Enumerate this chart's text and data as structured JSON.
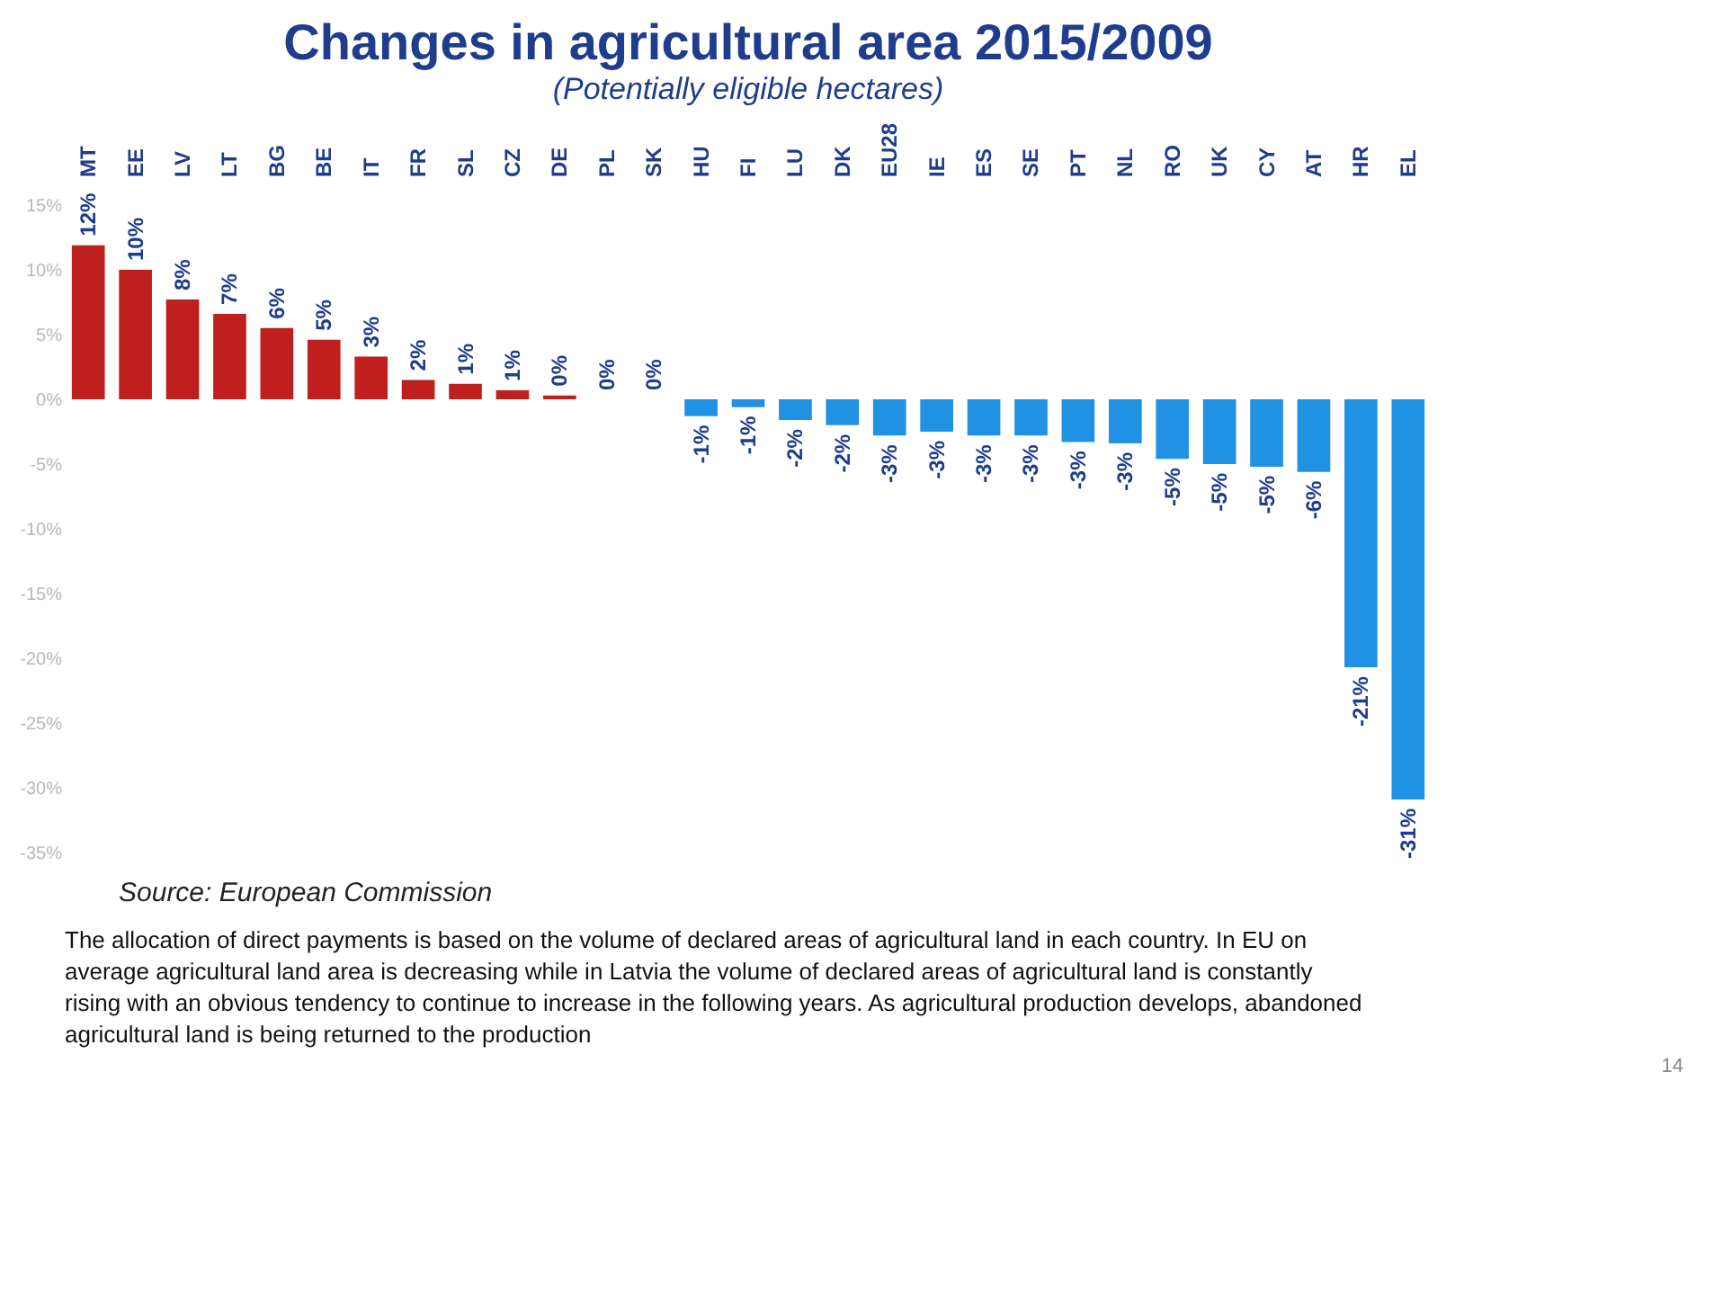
{
  "chart_data": {
    "type": "bar",
    "title": "Changes in agricultural area 2015/2009",
    "subtitle": "(Potentially eligible hectares)",
    "categories": [
      "MT",
      "EE",
      "LV",
      "LT",
      "BG",
      "BE",
      "IT",
      "FR",
      "SL",
      "CZ",
      "DE",
      "PL",
      "SK",
      "HU",
      "FI",
      "LU",
      "DK",
      "EU28",
      "IE",
      "ES",
      "SE",
      "PT",
      "NL",
      "RO",
      "UK",
      "CY",
      "AT",
      "HR",
      "EL"
    ],
    "values": [
      11.9,
      10,
      7.7,
      6.6,
      5.5,
      4.6,
      3.3,
      1.5,
      1.2,
      0.7,
      0.3,
      0,
      0,
      -1.3,
      -0.6,
      -1.6,
      -2,
      -2.8,
      -2.5,
      -2.8,
      -2.8,
      -3.3,
      -3.4,
      -4.6,
      -5,
      -5.2,
      -5.6,
      -20.7,
      -30.9
    ],
    "value_labels": [
      "12%",
      "10%",
      "8%",
      "7%",
      "6%",
      "5%",
      "3%",
      "2%",
      "1%",
      "1%",
      "0%",
      "0%",
      "0%",
      "-1%",
      "-1%",
      "-2%",
      "-2%",
      "-3%",
      "-3%",
      "-3%",
      "-3%",
      "-3%",
      "-3%",
      "-5%",
      "-5%",
      "-5%",
      "-6%",
      "-21%",
      "-31%"
    ],
    "colors": [
      "#c0201d",
      "#c0201d",
      "#c0201d",
      "#c0201d",
      "#c0201d",
      "#c0201d",
      "#c0201d",
      "#c0201d",
      "#c0201d",
      "#c0201d",
      "#c0201d",
      "#c0201d",
      "#c0201d",
      "#2191e3",
      "#2191e3",
      "#2191e3",
      "#2191e3",
      "#2191e3",
      "#2191e3",
      "#2191e3",
      "#2191e3",
      "#2191e3",
      "#2191e3",
      "#2191e3",
      "#2191e3",
      "#2191e3",
      "#2191e3",
      "#2191e3",
      "#2191e3"
    ],
    "ylim": [
      -35,
      15
    ],
    "yticks": [
      {
        "value": 15,
        "label": "15%"
      },
      {
        "value": 10,
        "label": "10%"
      },
      {
        "value": 5,
        "label": "5%"
      },
      {
        "value": 0,
        "label": "0%"
      },
      {
        "value": -5,
        "label": "-5%"
      },
      {
        "value": -10,
        "label": "-10%"
      },
      {
        "value": -15,
        "label": "-15%"
      },
      {
        "value": -20,
        "label": "-20%"
      },
      {
        "value": -25,
        "label": "-25%"
      },
      {
        "value": -30,
        "label": "-30%"
      },
      {
        "value": -35,
        "label": "-35%"
      }
    ],
    "grid": false,
    "annotations": [
      "Source: European Commission",
      "The allocation of direct payments is based on the volume of declared areas of agricultural land in each country. In EU on average agricultural land area is decreasing while in Latvia the volume of declared areas of agricultural land is constantly rising with an obvious tendency to continue to increase in the following years. As agricultural production develops, abandoned agricultural land is being returned to the production",
      "14"
    ]
  }
}
